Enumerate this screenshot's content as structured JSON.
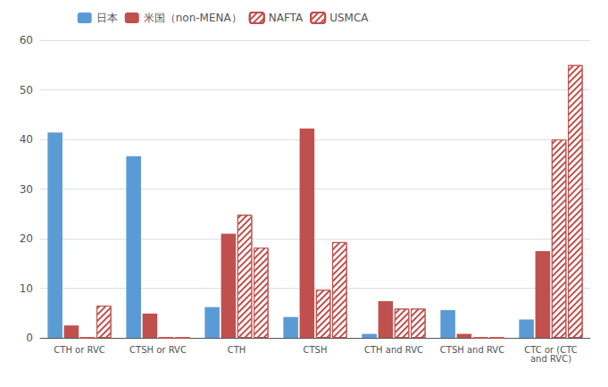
{
  "chart_data": {
    "type": "bar",
    "categories": [
      "CTH or RVC",
      "CTSH or RVC",
      "CTH",
      "CTSH",
      "CTH and RVC",
      "CTSH and RVC",
      "CTC or (CTC\nand RVC)"
    ],
    "series": [
      {
        "name": "日本",
        "color": "#5B9BD5",
        "values": [
          41.4,
          36.6,
          6.2,
          4.2,
          0.8,
          5.6,
          3.7
        ]
      },
      {
        "name": "米国（non-MENA）",
        "color": "#C0504D",
        "values": [
          2.5,
          4.9,
          21.0,
          42.2,
          7.4,
          0.8,
          17.5
        ]
      },
      {
        "name": "NAFTA",
        "color": "#C0504D",
        "values": [
          0,
          0,
          24.8,
          9.7,
          5.9,
          0,
          40.0
        ]
      },
      {
        "name": "USMCA",
        "color": "#C0504D",
        "values": [
          6.5,
          0,
          18.2,
          19.3,
          5.9,
          0,
          55.0
        ]
      }
    ],
    "ylim": [
      0,
      60
    ],
    "yticks": [
      0,
      10,
      20,
      30,
      40,
      50,
      60
    ],
    "grid": true,
    "legend": "upper left"
  }
}
